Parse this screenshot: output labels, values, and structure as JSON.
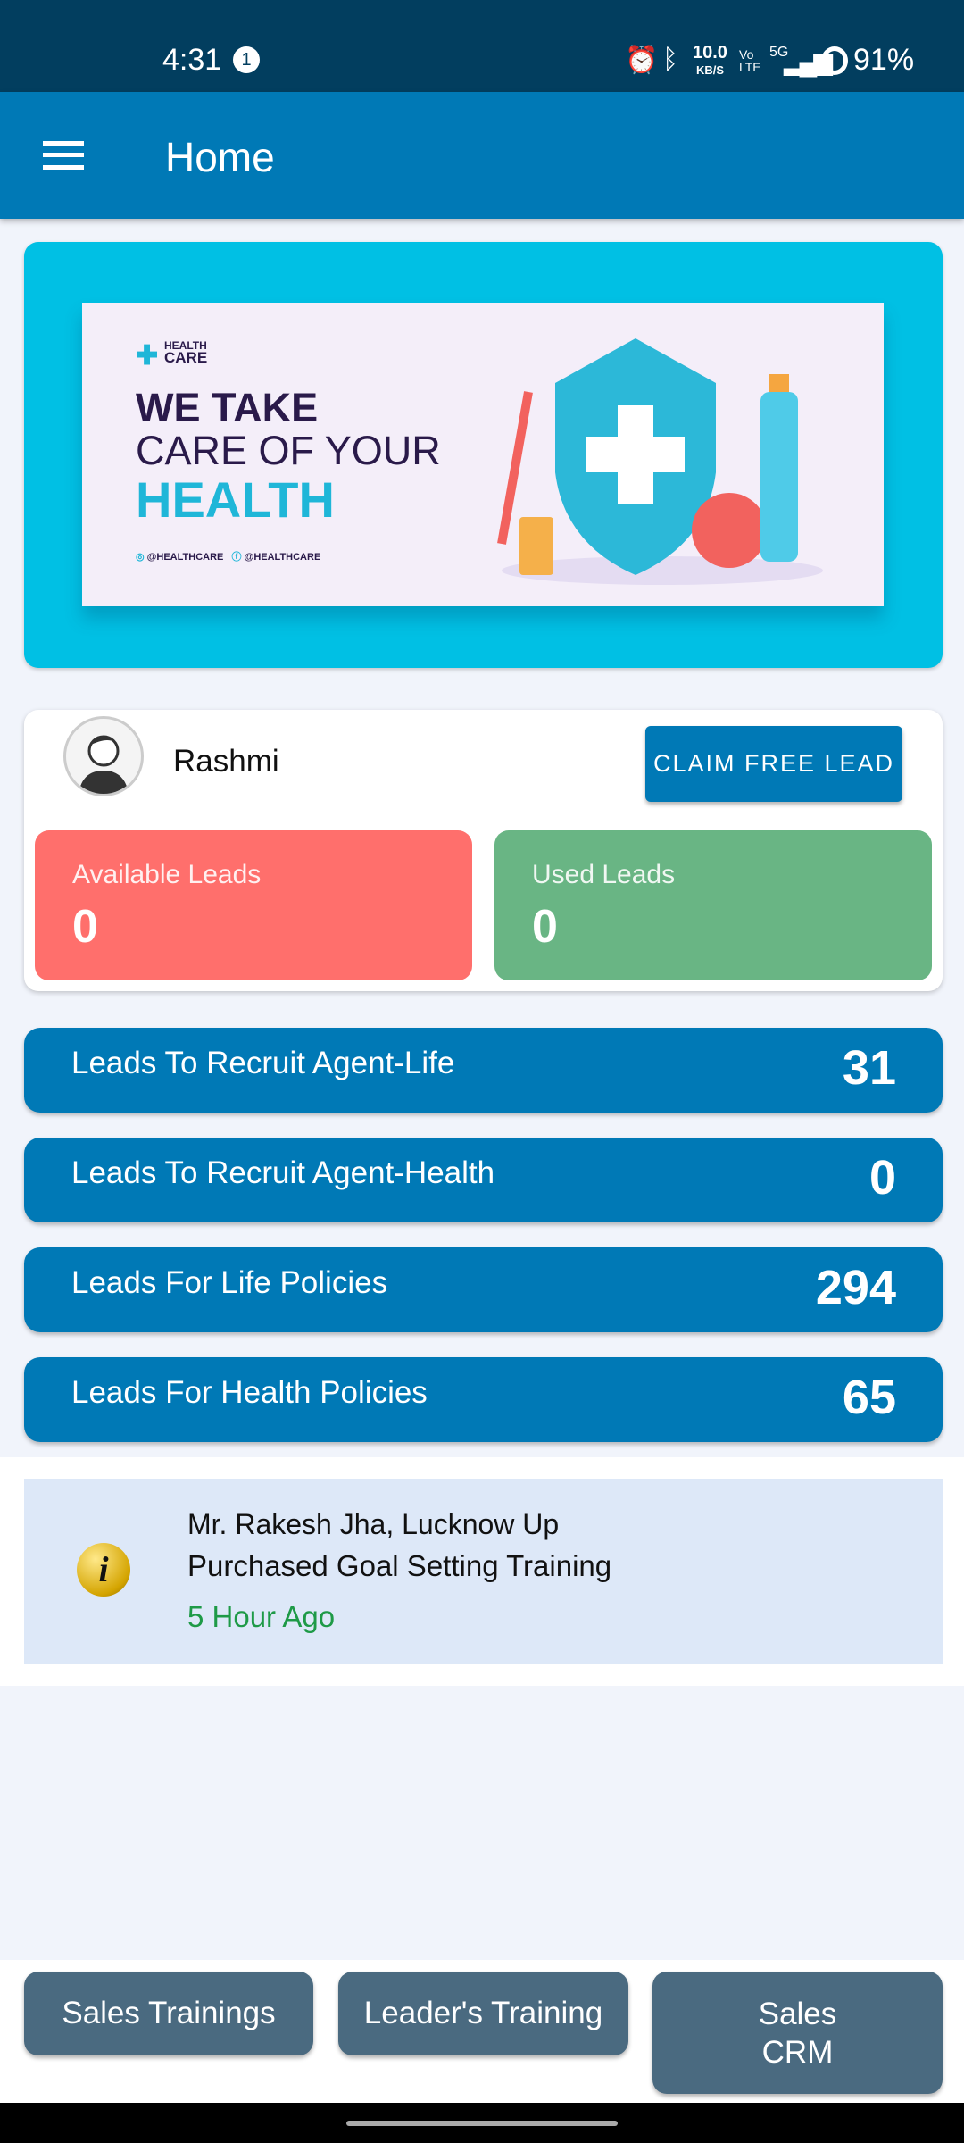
{
  "status_bar": {
    "time": "4:31",
    "notification_count": "1",
    "speed": "10.0",
    "speed_unit": "KB/S",
    "volte": "Vo LTE",
    "network": "5G",
    "battery": "91%"
  },
  "app_bar": {
    "title": "Home",
    "menu_icon": "hamburger-menu-icon"
  },
  "banner": {
    "brand_top": "HEALTH",
    "brand_bottom": "CARE",
    "line1": "WE TAKE",
    "line2": "CARE OF YOUR",
    "line3": "HEALTH",
    "instagram": "@HEALTHCARE",
    "facebook": "@HEALTHCARE",
    "active_slide": 1,
    "slide_count": 5
  },
  "profile": {
    "name": "Rashmi",
    "claim_button": "CLAIM FREE LEAD"
  },
  "stats": [
    {
      "label": "Available Leads",
      "value": "0",
      "color": "#ff6f6c"
    },
    {
      "label": "Used Leads",
      "value": "0",
      "color": "#69b584"
    }
  ],
  "lead_categories": [
    {
      "label": "Leads To Recruit Agent-Life",
      "value": "31"
    },
    {
      "label": "Leads To Recruit Agent-Health",
      "value": "0"
    },
    {
      "label": "Leads For Life Policies",
      "value": "294"
    },
    {
      "label": "Leads For Health Policies",
      "value": "65"
    }
  ],
  "activity": {
    "line1": "Mr. Rakesh Jha, Lucknow Up",
    "line2": "Purchased Goal Setting Training",
    "time": "5 Hour Ago"
  },
  "bottom_buttons": [
    "Sales Trainings",
    "Leader's Training",
    "Sales\nCRM"
  ]
}
